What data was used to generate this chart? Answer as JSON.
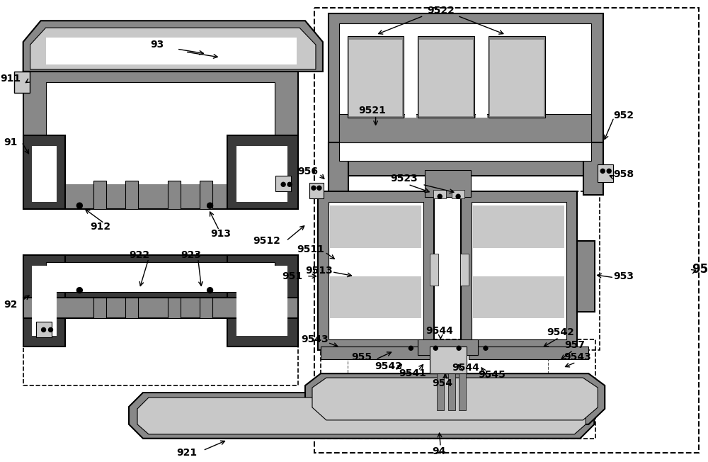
{
  "bg": "#ffffff",
  "lg": "#c8c8c8",
  "mg": "#888888",
  "dg": "#3a3a3a",
  "blk": "#000000",
  "fig_w": 10.0,
  "fig_h": 6.52,
  "dpi": 100
}
